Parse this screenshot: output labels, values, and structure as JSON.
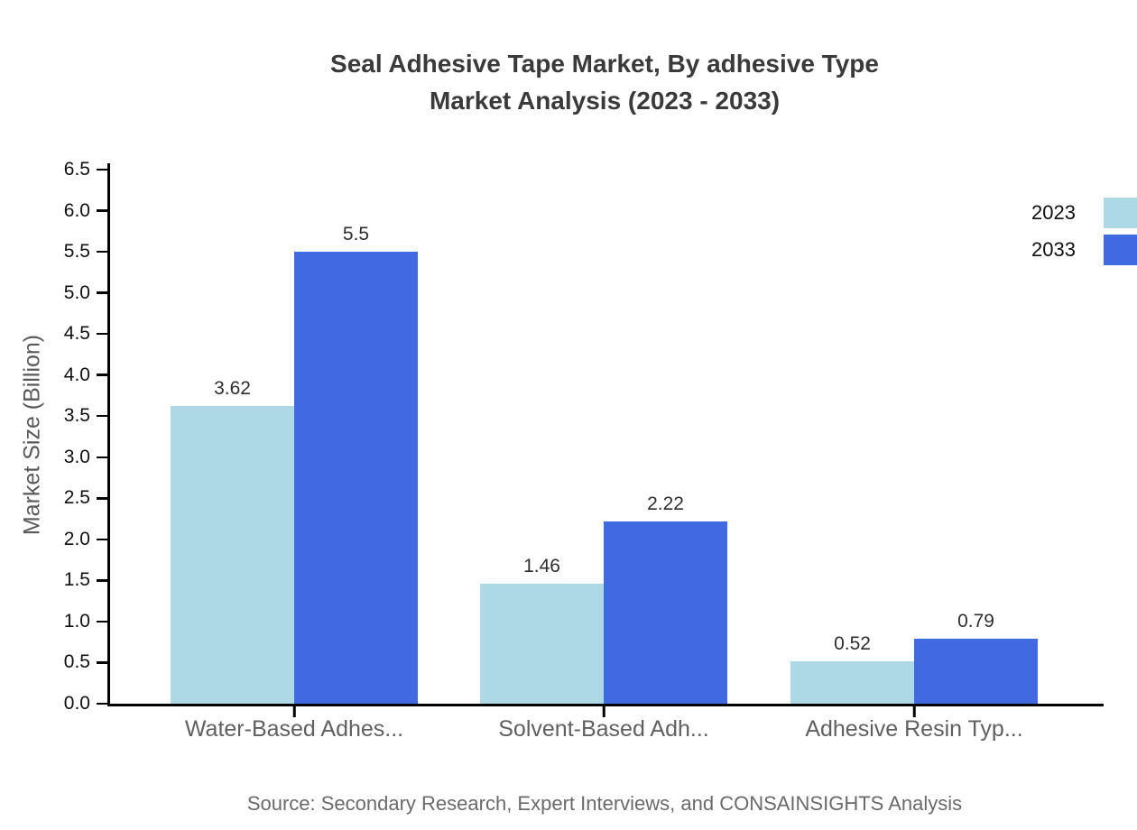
{
  "chart_data": {
    "type": "bar",
    "title_lines": [
      "Seal Adhesive Tape Market, By adhesive Type",
      "Market Analysis (2023 - 2033)"
    ],
    "ylabel": "Market Size (Billion)",
    "categories": [
      "Water-Based Adhes...",
      "Solvent-Based Adh...",
      "Adhesive Resin Typ..."
    ],
    "series": [
      {
        "name": "2023",
        "color": "#ADD8E6",
        "values": [
          3.62,
          1.46,
          0.52
        ],
        "labels": [
          "3.62",
          "1.46",
          "0.52"
        ]
      },
      {
        "name": "2033",
        "color": "#4169E1",
        "values": [
          5.5,
          2.22,
          0.79
        ],
        "labels": [
          "5.5",
          "2.22",
          "0.79"
        ]
      }
    ],
    "ylim": [
      0,
      6.5
    ],
    "ytick_step": 0.5,
    "ytick_labels": [
      "0.0",
      "0.5",
      "1.0",
      "1.5",
      "2.0",
      "2.5",
      "3.0",
      "3.5",
      "4.0",
      "4.5",
      "5.0",
      "5.5",
      "6.0",
      "6.5"
    ],
    "grid": false,
    "legend_position": "top-right-edge",
    "source": "Source: Secondary Research, Expert Interviews, and CONSAINSIGHTS Analysis"
  }
}
